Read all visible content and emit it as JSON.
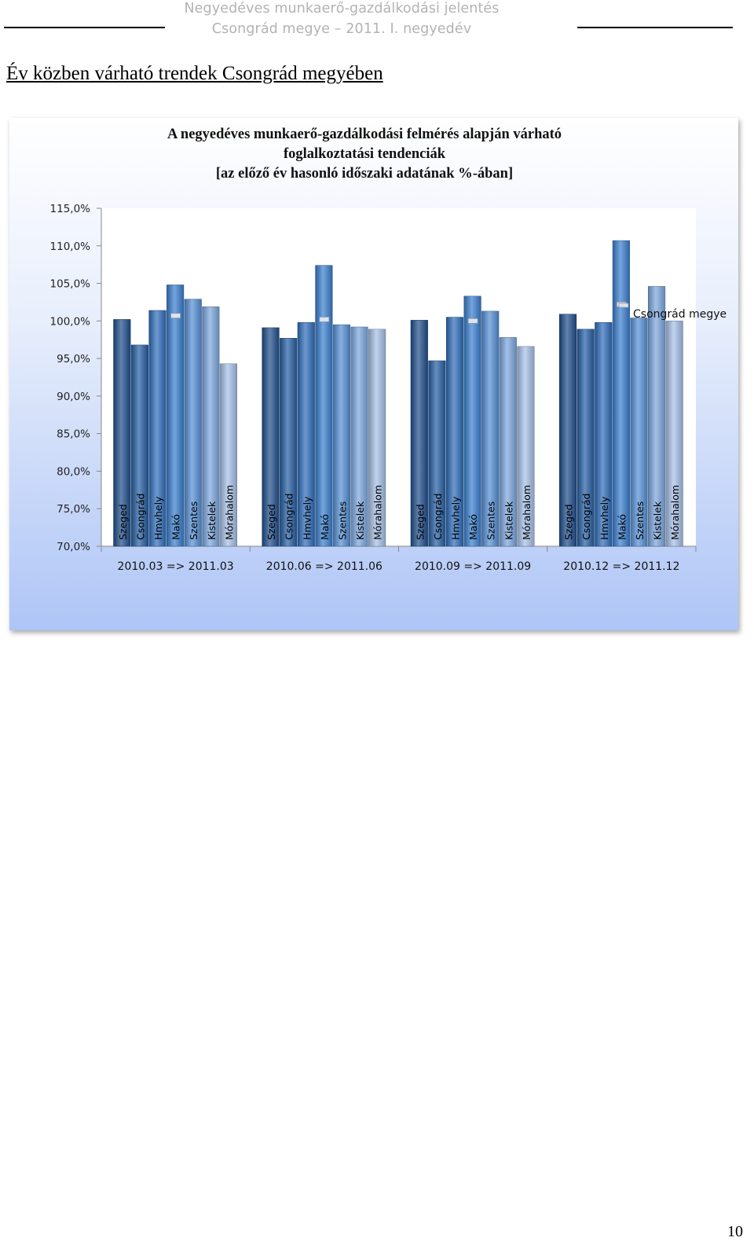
{
  "header": {
    "line1": "Negyedéves munkaerő-gazdálkodási jelentés",
    "line2": "Csongrád megye – 2011. I. negyedév"
  },
  "section_title": "Év közben várható trendek Csongrád megyében",
  "page_number": "10",
  "chart_data": {
    "type": "bar",
    "title_lines": [
      "A negyedéves munkaerő-gazdálkodási felmérés alapján várható",
      "foglalkoztatási tendenciák",
      "[az előző év hasonló időszaki adatának %-ában]"
    ],
    "categories": [
      "2010.03 => 2011.03",
      "2010.06 => 2011.06",
      "2010.09 => 2011.09",
      "2010.12 => 2011.12"
    ],
    "bar_labels": [
      "Szeged",
      "Csongrád",
      "Hmvhely",
      "Makó",
      "Szentes",
      "Kistelek",
      "Mórahalom"
    ],
    "series": [
      {
        "name": "Szeged",
        "values": [
          100.2,
          99.1,
          100.1,
          100.9
        ],
        "color": "#1f4e8c"
      },
      {
        "name": "Csongrád",
        "values": [
          96.8,
          97.7,
          94.7,
          98.9
        ],
        "color": "#255ea3"
      },
      {
        "name": "Hmvhely",
        "values": [
          101.4,
          99.8,
          100.5,
          99.8
        ],
        "color": "#2e6dbb"
      },
      {
        "name": "Makó",
        "values": [
          104.8,
          107.4,
          103.3,
          110.7
        ],
        "color": "#3a7ed0"
      },
      {
        "name": "Szentes",
        "values": [
          102.9,
          99.5,
          101.3,
          100.4
        ],
        "color": "#5590d6"
      },
      {
        "name": "Kistelek",
        "values": [
          101.9,
          99.2,
          97.8,
          104.6
        ],
        "color": "#7ca7de"
      },
      {
        "name": "Mórahalom",
        "values": [
          94.3,
          98.9,
          96.6,
          100.0
        ],
        "color": "#a6c1e8"
      }
    ],
    "line_series": {
      "name": "Csongrád megye",
      "values": [
        100.7,
        100.2,
        100.0,
        102.2
      ],
      "color": "#dfe4ec"
    },
    "ylim": [
      70,
      115
    ],
    "yticks": [
      "70,0%",
      "75,0%",
      "80,0%",
      "85,0%",
      "90,0%",
      "95,0%",
      "100,0%",
      "105,0%",
      "110,0%",
      "115,0%"
    ],
    "grid": false,
    "legend": "right"
  }
}
